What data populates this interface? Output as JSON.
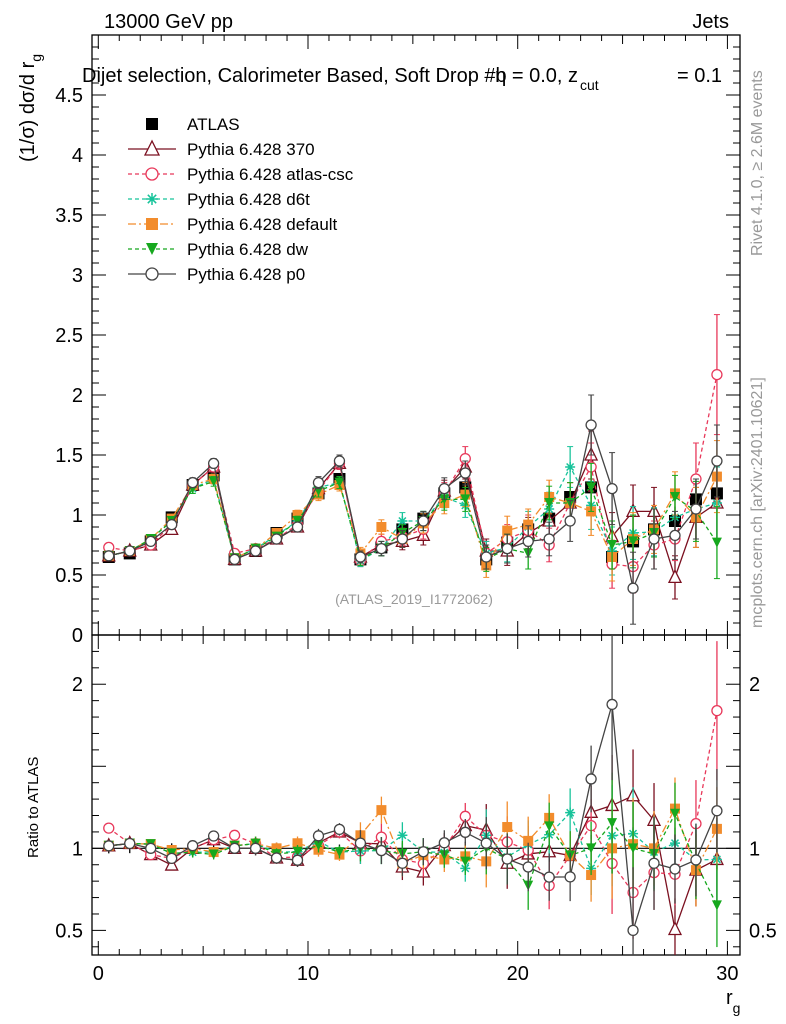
{
  "header": {
    "energy": "13000 GeV pp",
    "category": "Jets",
    "selection": "Dijet selection, Calorimeter Based, Soft Drop #b",
    "param_left": "η = 0.0, z",
    "param_sub": "cut",
    "param_right": "= 0.1",
    "side_top": "Rivet 4.1.0, ≥ 2.6M events",
    "side_bottom": "mcplots.cern.ch [arXiv:2401.10621]",
    "watermark": "(ATLAS_2019_I1772062)"
  },
  "chart_data": [
    {
      "panel": "main",
      "type": "scatter",
      "ylabel": "(1/σ) dσ/d r_g",
      "ylabel_main": "(1/σ) dσ/d r",
      "ylabel_sub": "g",
      "xlabel": "r_g",
      "xlabel_main": "r",
      "xlabel_sub": "g",
      "xlim": [
        -0.3,
        30.6
      ],
      "ylim": [
        0,
        5
      ],
      "yticks": [
        0,
        0.5,
        1,
        1.5,
        2,
        2.5,
        3,
        3.5,
        4,
        4.5
      ],
      "ytick_labels": [
        "0",
        "0.5",
        "1",
        "1.5",
        "2",
        "2.5",
        "3",
        "3.5",
        "4",
        "4.5"
      ],
      "x": [
        0.5,
        1.5,
        2.5,
        3.5,
        4.5,
        5.5,
        6.5,
        7.5,
        8.5,
        9.5,
        10.5,
        11.5,
        12.5,
        13.5,
        14.5,
        15.5,
        16.5,
        17.5,
        18.5,
        19.5,
        20.5,
        21.5,
        22.5,
        23.5,
        24.5,
        25.5,
        26.5,
        27.5,
        28.5,
        29.5
      ],
      "series": [
        {
          "name": "ATLAS",
          "color": "#000000",
          "marker": "square",
          "dash": "none",
          "values": [
            0.65,
            0.68,
            0.78,
            0.98,
            1.25,
            1.33,
            0.63,
            0.7,
            0.85,
            0.97,
            1.18,
            1.3,
            0.63,
            0.73,
            0.88,
            0.97,
            1.18,
            1.23,
            0.63,
            0.77,
            0.88,
            0.97,
            1.15,
            1.23,
            0.65,
            0.78,
            0.88,
            0.95,
            1.13,
            1.18
          ],
          "errors": [
            0.02,
            0.02,
            0.02,
            0.03,
            0.03,
            0.03,
            0.02,
            0.02,
            0.03,
            0.03,
            0.03,
            0.03,
            0.02,
            0.03,
            0.03,
            0.04,
            0.05,
            0.05,
            0.05,
            0.06,
            0.07,
            0.08,
            0.09,
            0.1,
            0.1,
            0.1,
            0.12,
            0.12,
            0.13,
            0.15
          ]
        },
        {
          "name": "Pythia 6.428 370",
          "color": "#7b1020",
          "marker": "triangle-open",
          "dash": "none",
          "values": [
            0.66,
            0.7,
            0.75,
            0.88,
            1.25,
            1.4,
            0.63,
            0.7,
            0.8,
            0.9,
            1.22,
            1.43,
            0.65,
            0.75,
            0.78,
            0.83,
            1.2,
            1.4,
            0.7,
            0.7,
            0.85,
            0.95,
            1.1,
            1.5,
            0.82,
            1.03,
            1.03,
            0.48,
            0.98,
            1.1
          ],
          "errors": [
            0.02,
            0.02,
            0.02,
            0.03,
            0.04,
            0.04,
            0.02,
            0.03,
            0.03,
            0.04,
            0.05,
            0.05,
            0.05,
            0.06,
            0.07,
            0.08,
            0.09,
            0.1,
            0.1,
            0.12,
            0.13,
            0.14,
            0.17,
            0.2,
            0.2,
            0.22,
            0.2,
            0.18,
            0.25,
            0.3
          ]
        },
        {
          "name": "Pythia 6.428 atlas-csc",
          "color": "#e8385a",
          "marker": "circle-open",
          "dash": "4 3",
          "values": [
            0.73,
            0.7,
            0.75,
            0.92,
            1.25,
            1.4,
            0.68,
            0.72,
            0.8,
            0.92,
            1.2,
            1.43,
            0.62,
            0.78,
            0.82,
            0.88,
            1.18,
            1.47,
            0.68,
            0.8,
            0.87,
            0.75,
            1.1,
            1.4,
            0.59,
            0.57,
            0.75,
            0.8,
            1.3,
            2.17
          ],
          "errors": [
            0.02,
            0.02,
            0.02,
            0.03,
            0.04,
            0.04,
            0.02,
            0.03,
            0.03,
            0.04,
            0.05,
            0.05,
            0.05,
            0.06,
            0.07,
            0.08,
            0.09,
            0.1,
            0.1,
            0.12,
            0.13,
            0.14,
            0.17,
            0.2,
            0.2,
            0.22,
            0.2,
            0.18,
            0.3,
            0.5
          ]
        },
        {
          "name": "Pythia 6.428 d6t",
          "color": "#17c39a",
          "marker": "star",
          "dash": "4 3",
          "values": [
            0.66,
            0.7,
            0.8,
            0.95,
            1.22,
            1.3,
            0.64,
            0.72,
            0.83,
            0.95,
            1.23,
            1.27,
            0.62,
            0.72,
            0.95,
            0.95,
            1.15,
            1.08,
            0.68,
            0.73,
            0.9,
            1.05,
            1.4,
            1.08,
            0.7,
            0.85,
            0.86,
            0.98,
            1.05,
            1.1
          ],
          "errors": [
            0.02,
            0.02,
            0.02,
            0.03,
            0.04,
            0.04,
            0.02,
            0.03,
            0.03,
            0.04,
            0.05,
            0.05,
            0.05,
            0.06,
            0.07,
            0.08,
            0.09,
            0.1,
            0.1,
            0.12,
            0.13,
            0.14,
            0.17,
            0.2,
            0.2,
            0.22,
            0.2,
            0.18,
            0.25,
            0.3
          ]
        },
        {
          "name": "Pythia 6.428 default",
          "color": "#f28c2c",
          "marker": "square",
          "dash": "8 3 2 3",
          "values": [
            0.66,
            0.7,
            0.8,
            0.97,
            1.25,
            1.3,
            0.64,
            0.72,
            0.85,
            1.0,
            1.17,
            1.25,
            0.68,
            0.9,
            0.8,
            0.93,
            1.1,
            1.17,
            0.58,
            0.87,
            0.92,
            1.15,
            1.1,
            1.03,
            0.65,
            0.8,
            0.88,
            1.18,
            0.98,
            1.32
          ],
          "errors": [
            0.02,
            0.02,
            0.02,
            0.03,
            0.04,
            0.04,
            0.02,
            0.03,
            0.03,
            0.04,
            0.05,
            0.05,
            0.05,
            0.06,
            0.07,
            0.08,
            0.09,
            0.1,
            0.1,
            0.12,
            0.13,
            0.14,
            0.17,
            0.2,
            0.2,
            0.22,
            0.2,
            0.18,
            0.25,
            0.3
          ]
        },
        {
          "name": "Pythia 6.428 dw",
          "color": "#16a81e",
          "marker": "triangle-down",
          "dash": "4 3",
          "values": [
            0.66,
            0.7,
            0.8,
            0.95,
            1.22,
            1.28,
            0.64,
            0.72,
            0.82,
            0.95,
            1.2,
            1.27,
            0.63,
            0.72,
            0.85,
            0.95,
            1.13,
            1.13,
            0.63,
            0.72,
            0.68,
            1.1,
            1.1,
            1.23,
            0.75,
            0.78,
            0.85,
            1.15,
            1.03,
            0.77
          ],
          "errors": [
            0.02,
            0.02,
            0.02,
            0.03,
            0.04,
            0.04,
            0.02,
            0.03,
            0.03,
            0.04,
            0.05,
            0.05,
            0.05,
            0.06,
            0.07,
            0.08,
            0.09,
            0.1,
            0.1,
            0.12,
            0.13,
            0.14,
            0.17,
            0.2,
            0.2,
            0.22,
            0.2,
            0.18,
            0.25,
            0.3
          ]
        },
        {
          "name": "Pythia 6.428 p0",
          "color": "#444444",
          "marker": "circle-open",
          "dash": "none",
          "values": [
            0.66,
            0.7,
            0.78,
            0.92,
            1.27,
            1.43,
            0.63,
            0.7,
            0.8,
            0.9,
            1.27,
            1.45,
            0.65,
            0.72,
            0.8,
            0.95,
            1.22,
            1.35,
            0.65,
            0.72,
            0.78,
            0.8,
            0.95,
            1.75,
            1.22,
            0.39,
            0.8,
            0.83,
            1.05,
            1.45
          ],
          "errors": [
            0.02,
            0.02,
            0.02,
            0.03,
            0.04,
            0.04,
            0.02,
            0.03,
            0.03,
            0.04,
            0.05,
            0.05,
            0.05,
            0.06,
            0.07,
            0.08,
            0.09,
            0.1,
            0.1,
            0.12,
            0.13,
            0.14,
            0.17,
            0.25,
            0.3,
            0.3,
            0.25,
            0.2,
            0.25,
            0.3
          ]
        }
      ]
    },
    {
      "panel": "ratio",
      "type": "scatter",
      "ylabel": "Ratio to ATLAS",
      "xlabel": "r_g",
      "xlim": [
        -0.3,
        30.6
      ],
      "ylim": [
        0.35,
        2.3
      ],
      "yticks": [
        0.5,
        1,
        2
      ],
      "ytick_labels": [
        "0.5",
        "1",
        "2"
      ],
      "xticks": [
        0,
        10,
        20,
        30
      ],
      "xtick_labels": [
        "0",
        "10",
        "20",
        "30"
      ],
      "reference_line": 1,
      "note": "Ratio of each Pythia series to ATLAS, same x bins and series order as the main panel"
    }
  ]
}
